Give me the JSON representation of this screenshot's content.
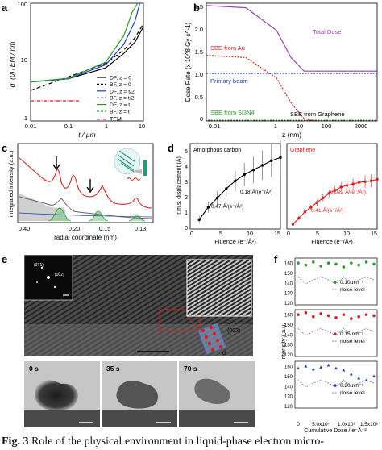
{
  "caption": {
    "label": "Fig. 3",
    "text": "Role of the physical environment in liquid-phase electron micro-"
  },
  "panel_a": {
    "letter": "a",
    "ylabel": "d_(0)TEM / nm",
    "xlabel": "t / µm",
    "yticks": [
      "100",
      "10",
      "1"
    ],
    "xticks": [
      "0.01",
      "0.1",
      "1",
      "10"
    ],
    "legend": [
      {
        "label": "DF, z = 0",
        "color": "#000000",
        "dash": "solid"
      },
      {
        "label": "BF, z = 0",
        "color": "#000000",
        "dash": "dash"
      },
      {
        "label": "DF, z = t/2",
        "color": "#1f3fbf",
        "dash": "solid"
      },
      {
        "label": "BF, z = t/2",
        "color": "#1f3fbf",
        "dash": "dash"
      },
      {
        "label": "DF, z = t",
        "color": "#2a9a2a",
        "dash": "solid"
      },
      {
        "label": "BF, z = t",
        "color": "#2a9a2a",
        "dash": "dash"
      }
    ],
    "tem_label": "TEM",
    "chart_data": {
      "type": "line",
      "xscale": "log",
      "yscale": "log",
      "xlim": [
        0.01,
        10
      ],
      "ylim": [
        1,
        100
      ],
      "series": [
        {
          "name": "DF, z = 0",
          "x": [
            0.01,
            0.1,
            1,
            3,
            6,
            10
          ],
          "y": [
            4.6,
            5.2,
            8,
            14,
            22,
            40
          ]
        },
        {
          "name": "BF, z = 0",
          "x": [
            0.01,
            0.1,
            1,
            3,
            6,
            10
          ],
          "y": [
            3.3,
            5.6,
            9.5,
            16,
            26,
            45
          ]
        },
        {
          "name": "DF, z = t/2",
          "x": [
            0.01,
            0.1,
            1,
            3,
            6,
            8
          ],
          "y": [
            4.6,
            5.2,
            9,
            20,
            50,
            100
          ]
        },
        {
          "name": "DF, z = t",
          "x": [
            0.01,
            0.1,
            1,
            3,
            5,
            7
          ],
          "y": [
            4.6,
            5.3,
            10,
            28,
            70,
            100
          ]
        },
        {
          "name": "TEM",
          "x": [
            0.01,
            0.02,
            0.05,
            0.1,
            0.2
          ],
          "y": [
            2.2,
            2.2,
            2.2,
            2.2,
            2.2
          ]
        }
      ]
    }
  },
  "panel_b": {
    "letter": "b",
    "ylabel": "Dose Rate (x 10^8 Gy s^-1)",
    "xlabel": "z (nm)",
    "yticks": [
      "2.5",
      "2.0",
      "1.5",
      "1.0",
      "0.5",
      "0"
    ],
    "xticks": [
      "0.01",
      "1",
      "10",
      "100",
      "2000"
    ],
    "labels": {
      "total": "Total Dose",
      "sbe_au": "SBE from Au",
      "primary": "Primary beam",
      "sbe_sin": "SBE from Si3N4",
      "sbe_gr": "SBE from Graphene"
    },
    "colors": {
      "total": "#9b3fb5",
      "au": "#d62020",
      "primary": "#1f3fbf",
      "sin": "#2a9a2a",
      "gr": "#000000"
    },
    "chart_data": {
      "type": "line",
      "xscale": "log",
      "xlim": [
        0.005,
        2000
      ],
      "ylim": [
        0,
        2.6
      ],
      "series": [
        {
          "name": "Total Dose",
          "x": [
            0.005,
            0.1,
            1,
            3,
            8,
            20,
            2000
          ],
          "y": [
            2.55,
            2.5,
            2.0,
            1.4,
            1.1,
            1.1,
            1.1
          ]
        },
        {
          "name": "SBE from Au",
          "x": [
            0.005,
            0.1,
            1,
            3,
            8,
            20
          ],
          "y": [
            1.45,
            1.4,
            0.95,
            0.4,
            0.05,
            0.0
          ]
        },
        {
          "name": "Primary beam",
          "x": [
            0.005,
            2000
          ],
          "y": [
            1.05,
            1.05
          ]
        }
      ]
    }
  },
  "panel_c": {
    "letter": "c",
    "ylabel": "integrated intensity (a.u.)",
    "xlabel": "radial coordinate (nm)",
    "xticks": [
      "0.40",
      "0.20",
      "0.15",
      "0.13"
    ]
  },
  "panel_d": {
    "letter": "d",
    "ylabel": "r.m.s. displacement (Å)",
    "xlabel": "Fluence (e⁻/Å²)",
    "left_title": "Amorphous carbon",
    "right_title": "Graphene",
    "ann_a1": "0.47 Å/(e⁻/Å²)",
    "ann_a2": "0.18 Å/(e⁻/Å²)",
    "ann_g1": "0.41 Å/(e⁻/Å²)",
    "ann_g2": "0.092 Å/(e⁻/Å²)",
    "yticks": [
      "5",
      "4",
      "3",
      "2",
      "1",
      "0"
    ],
    "xticks_left": [
      "0",
      "5",
      "10",
      "15"
    ],
    "xticks_right": [
      "0",
      "5",
      "10",
      "15"
    ],
    "chart_data": [
      {
        "type": "line",
        "name": "Amorphous carbon",
        "xlim": [
          0,
          15
        ],
        "ylim": [
          0,
          5.5
        ],
        "x": [
          1.5,
          3,
          4.5,
          6,
          7.5,
          9,
          10.5,
          12,
          13.5,
          15
        ],
        "y": [
          0.6,
          1.4,
          2.0,
          2.6,
          3.1,
          3.5,
          3.8,
          4.1,
          4.4,
          4.6
        ]
      },
      {
        "type": "line",
        "name": "Graphene",
        "xlim": [
          0,
          15
        ],
        "ylim": [
          0,
          5.5
        ],
        "x": [
          1,
          2,
          3,
          4,
          5,
          6,
          7,
          8,
          9,
          10,
          11,
          12,
          13,
          14,
          15
        ],
        "y": [
          0.3,
          0.7,
          1.1,
          1.4,
          1.7,
          2.0,
          2.3,
          2.5,
          2.7,
          2.8,
          2.9,
          3.0,
          3.05,
          3.1,
          3.2
        ]
      }
    ]
  },
  "panel_e": {
    "letter": "e",
    "fft_labels": [
      "(0T1)",
      "(002)"
    ],
    "inset_label": "(002)",
    "d_label": "d",
    "times": [
      "0 s",
      "35 s",
      "70 s"
    ]
  },
  "panel_f": {
    "letter": "f",
    "ylabel": "Intensity / a.u.",
    "xlabel": "Cumulative Dose / e⁻Å⁻²",
    "yticks": [
      "160",
      "150",
      "140",
      "130",
      "120"
    ],
    "xticks": [
      "0",
      "5.0x10⁷",
      "1.0x10⁸",
      "1.5x10⁸"
    ],
    "subplots": [
      {
        "freq": "0.10 nm⁻¹",
        "noise": "noise level",
        "color": "#2a9a2a"
      },
      {
        "freq": "0.15 nm⁻¹",
        "noise": "noise level",
        "color": "#d62020"
      },
      {
        "freq": "0.20 nm⁻¹",
        "noise": "noise level",
        "color": "#1f3fbf"
      }
    ],
    "chart_data": [
      {
        "type": "scatter",
        "name": "0.10 nm⁻¹",
        "ylim": [
          118,
          165
        ],
        "x": [
          0,
          10,
          20,
          30,
          40,
          50,
          60,
          70,
          80,
          90,
          100
        ],
        "y": [
          160,
          158,
          161,
          157,
          160,
          159,
          156,
          160,
          158,
          161,
          159
        ]
      },
      {
        "type": "scatter",
        "name": "0.15 nm⁻¹",
        "ylim": [
          118,
          165
        ],
        "x": [
          0,
          10,
          20,
          30,
          40,
          50,
          60,
          70,
          80,
          90,
          100
        ],
        "y": [
          160,
          162,
          158,
          161,
          159,
          157,
          160,
          156,
          158,
          160,
          159
        ]
      },
      {
        "type": "scatter",
        "name": "0.20 nm⁻¹",
        "ylim": [
          118,
          165
        ],
        "x": [
          0,
          10,
          20,
          30,
          40,
          50,
          60,
          70,
          80,
          90,
          100
        ],
        "y": [
          158,
          160,
          157,
          159,
          161,
          158,
          156,
          152,
          148,
          146,
          150
        ]
      }
    ]
  }
}
